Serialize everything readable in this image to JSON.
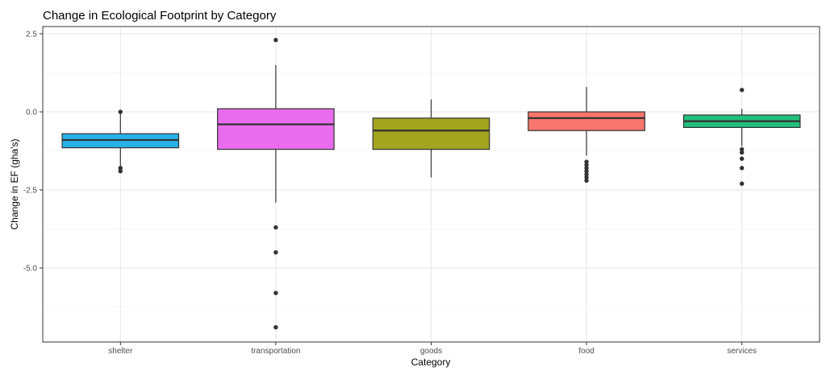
{
  "chart_data": {
    "type": "boxplot",
    "title": "Change in Ecological Footprint by Category",
    "xlabel": "Category",
    "ylabel": "Change in EF (gha's)",
    "ylim": [
      -7.3,
      2.7
    ],
    "yticks": [
      2.5,
      0.0,
      -2.5,
      -5.0
    ],
    "ytick_labels": [
      "2.5",
      "0.0",
      "-2.5",
      "-5.0"
    ],
    "grid": true,
    "legend": "none",
    "categories": [
      "shelter",
      "transportation",
      "goods",
      "food",
      "services"
    ],
    "boxes": [
      {
        "category": "shelter",
        "color": "#26b0e8",
        "whisker_low": -1.75,
        "q1": -1.15,
        "median": -0.9,
        "q3": -0.7,
        "whisker_high": 0.0,
        "outliers": [
          0.0,
          -1.8,
          -1.9
        ]
      },
      {
        "category": "transportation",
        "color": "#e86ced",
        "whisker_low": -2.9,
        "q1": -1.2,
        "median": -0.4,
        "q3": 0.1,
        "whisker_high": 1.5,
        "outliers": [
          2.3,
          -3.7,
          -4.5,
          -5.8,
          -6.9
        ]
      },
      {
        "category": "goods",
        "color": "#a3a51f",
        "whisker_low": -2.1,
        "q1": -1.2,
        "median": -0.6,
        "q3": -0.2,
        "whisker_high": 0.4,
        "outliers": []
      },
      {
        "category": "food",
        "color": "#f8766d",
        "whisker_low": -1.4,
        "q1": -0.6,
        "median": -0.2,
        "q3": 0.0,
        "whisker_high": 0.8,
        "outliers": [
          -1.6,
          -1.7,
          -1.8,
          -1.9,
          -2.0,
          -2.1,
          -2.2
        ]
      },
      {
        "category": "services",
        "color": "#21bf7d",
        "whisker_low": -1.1,
        "q1": -0.5,
        "median": -0.3,
        "q3": -0.1,
        "whisker_high": 0.1,
        "outliers": [
          0.7,
          -1.2,
          -1.3,
          -1.5,
          -1.8,
          -2.3
        ]
      }
    ]
  }
}
